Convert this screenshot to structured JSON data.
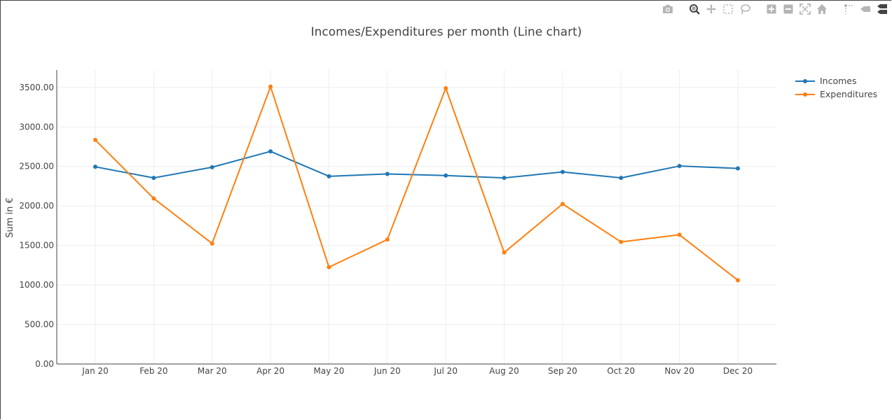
{
  "modebar": {
    "buttons": [
      {
        "name": "camera-icon",
        "group": 0
      },
      {
        "name": "zoom-icon",
        "group": 1
      },
      {
        "name": "pan-icon",
        "group": 1
      },
      {
        "name": "box-select-icon",
        "group": 1
      },
      {
        "name": "lasso-select-icon",
        "group": 1
      },
      {
        "name": "zoom-in-icon",
        "group": 2
      },
      {
        "name": "zoom-out-icon",
        "group": 2
      },
      {
        "name": "autoscale-icon",
        "group": 2
      },
      {
        "name": "reset-axes-icon",
        "group": 2
      },
      {
        "name": "spike-lines-icon",
        "group": 3
      },
      {
        "name": "hover-closest-icon",
        "group": 3
      },
      {
        "name": "hover-compare-icon",
        "group": 3
      }
    ]
  },
  "chart_data": {
    "type": "line",
    "title": "Incomes/Expenditures per month (Line chart)",
    "xlabel": "",
    "ylabel": "Sum in €",
    "categories": [
      "Jan 20",
      "Feb 20",
      "Mar 20",
      "Apr 20",
      "May 20",
      "Jun 20",
      "Jul 20",
      "Aug 20",
      "Sep 20",
      "Oct 20",
      "Nov 20",
      "Dec 20"
    ],
    "ylim": [
      0,
      3720
    ],
    "yticks": [
      0,
      500,
      1000,
      1500,
      2000,
      2500,
      3000,
      3500
    ],
    "ytick_labels": [
      "0.00",
      "500.00",
      "1000.00",
      "1500.00",
      "2000.00",
      "2500.00",
      "3000.00",
      "3500.00"
    ],
    "grid": true,
    "legend_position": "top-right",
    "series": [
      {
        "name": "Incomes",
        "color": "#1f77b4",
        "values": [
          2495,
          2355,
          2490,
          2690,
          2375,
          2405,
          2385,
          2355,
          2430,
          2355,
          2505,
          2475
        ]
      },
      {
        "name": "Expenditures",
        "color": "#ff7f0e",
        "values": [
          2835,
          2095,
          1525,
          3510,
          1225,
          1575,
          3490,
          1410,
          2025,
          1545,
          1635,
          1060
        ]
      }
    ]
  }
}
